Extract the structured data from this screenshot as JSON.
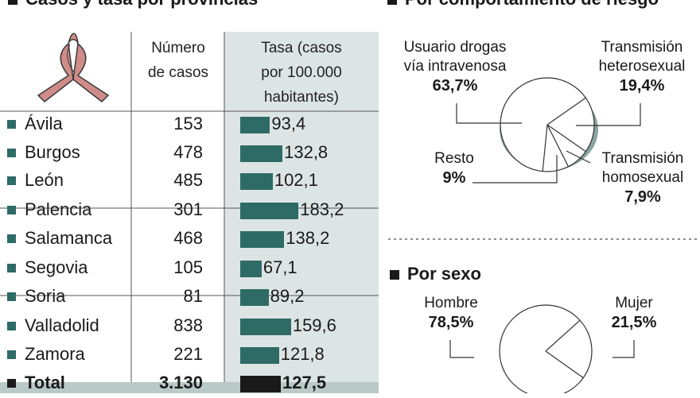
{
  "left_title": "Casos y tasa por provincias",
  "risk_title": "Por comportamiento de riesgo",
  "sex_title": "Por sexo",
  "table": {
    "col_cases": [
      "Número",
      "de casos"
    ],
    "col_rate": [
      "Tasa (casos",
      "por 100.000",
      "habitantes)"
    ],
    "rows": [
      {
        "name": "Ávila",
        "cases": "153",
        "rate": "93,4"
      },
      {
        "name": "Burgos",
        "cases": "478",
        "rate": "132,8"
      },
      {
        "name": "León",
        "cases": "485",
        "rate": "102,1"
      },
      {
        "name": "Palencia",
        "cases": "301",
        "rate": "183,2"
      },
      {
        "name": "Salamanca",
        "cases": "468",
        "rate": "138,2"
      },
      {
        "name": "Segovia",
        "cases": "105",
        "rate": "67,1"
      },
      {
        "name": "Soria",
        "cases": "81",
        "rate": "89,2"
      },
      {
        "name": "Valladolid",
        "cases": "838",
        "rate": "159,6"
      },
      {
        "name": "Zamora",
        "cases": "221",
        "rate": "121,8"
      },
      {
        "name": "Total",
        "cases": "3.130",
        "rate": "127,5"
      }
    ]
  },
  "risk_labels": {
    "drug": [
      "Usuario drogas",
      "vía intravenosa",
      "63,7%"
    ],
    "hetero": [
      "Transmisión",
      "heterosexual",
      "19,4%"
    ],
    "rest": [
      "Resto",
      "9%"
    ],
    "homo": [
      "Transmisión",
      "homosexual",
      "7,9%"
    ]
  },
  "sex_labels": {
    "male": [
      "Hombre",
      "78,5%"
    ],
    "female": [
      "Mujer",
      "21,5%"
    ]
  },
  "colors": {
    "bar": "#2e6b66",
    "rate_column_bg": "#dce5e3",
    "ribbon": "#d08c88",
    "pie_shadow": "#8aa39f"
  },
  "chart_data": [
    {
      "type": "bar",
      "title": "Casos y tasa por provincias",
      "categories": [
        "Ávila",
        "Burgos",
        "León",
        "Palencia",
        "Salamanca",
        "Segovia",
        "Soria",
        "Valladolid",
        "Zamora",
        "Total"
      ],
      "series": [
        {
          "name": "Número de casos",
          "values": [
            153,
            478,
            485,
            301,
            468,
            105,
            81,
            838,
            221,
            3130
          ]
        },
        {
          "name": "Tasa (casos por 100.000 habitantes)",
          "values": [
            93.4,
            132.8,
            102.1,
            183.2,
            138.2,
            67.1,
            89.2,
            159.6,
            121.8,
            127.5
          ]
        }
      ]
    },
    {
      "type": "pie",
      "title": "Por comportamiento de riesgo",
      "categories": [
        "Usuario drogas vía intravenosa",
        "Transmisión heterosexual",
        "Transmisión homosexual",
        "Resto"
      ],
      "values": [
        63.7,
        19.4,
        7.9,
        9
      ]
    },
    {
      "type": "pie",
      "title": "Por sexo",
      "categories": [
        "Hombre",
        "Mujer"
      ],
      "values": [
        78.5,
        21.5
      ]
    }
  ]
}
